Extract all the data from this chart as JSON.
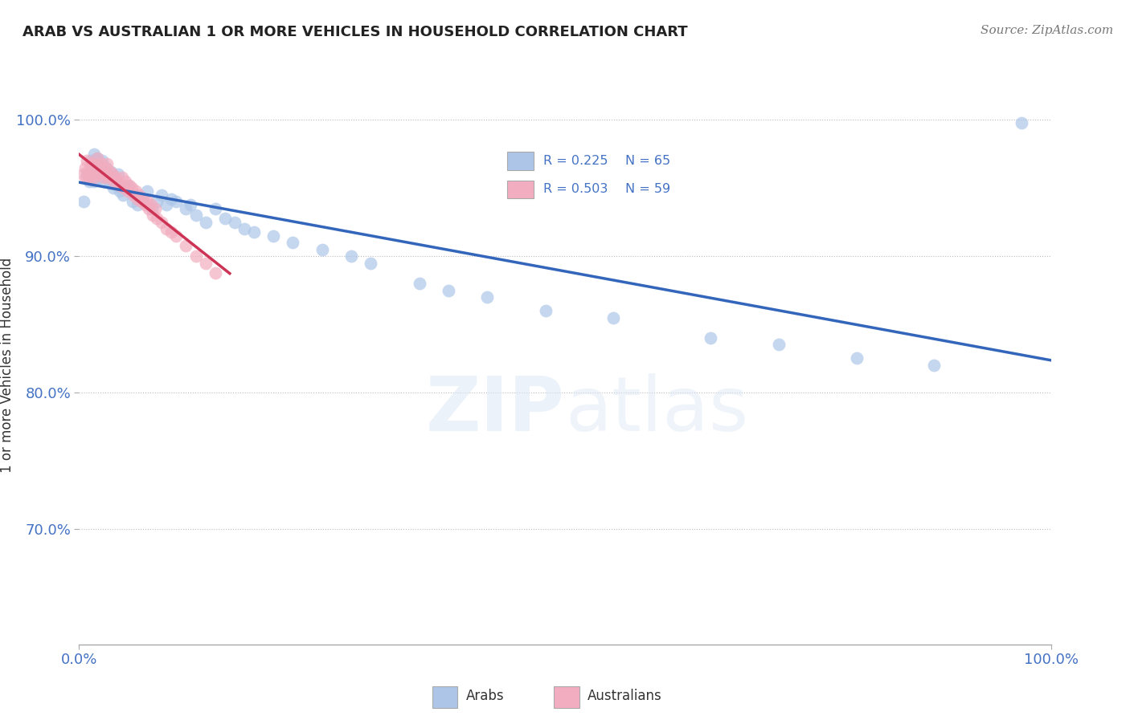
{
  "title": "ARAB VS AUSTRALIAN 1 OR MORE VEHICLES IN HOUSEHOLD CORRELATION CHART",
  "source": "Source: ZipAtlas.com",
  "ylabel": "1 or more Vehicles in Household",
  "xlabel": "",
  "xlim": [
    0.0,
    1.0
  ],
  "ylim": [
    0.615,
    1.025
  ],
  "yticks": [
    0.7,
    0.8,
    0.9,
    1.0
  ],
  "ytick_labels": [
    "70.0%",
    "80.0%",
    "90.0%",
    "100.0%"
  ],
  "xticks": [
    0.0,
    1.0
  ],
  "xtick_labels": [
    "0.0%",
    "100.0%"
  ],
  "r_arab": 0.225,
  "n_arab": 65,
  "r_australian": 0.503,
  "n_australian": 59,
  "legend_label_arab": "Arabs",
  "legend_label_australian": "Australians",
  "arab_color": "#adc6e8",
  "australian_color": "#f2adc0",
  "arab_line_color": "#3366bb",
  "australian_line_color": "#cc3355",
  "watermark_zip": "ZIP",
  "watermark_atlas": "atlas",
  "background_color": "#ffffff",
  "arab_x": [
    0.005,
    0.008,
    0.01,
    0.012,
    0.013,
    0.015,
    0.015,
    0.016,
    0.017,
    0.018,
    0.019,
    0.02,
    0.021,
    0.022,
    0.023,
    0.024,
    0.025,
    0.026,
    0.027,
    0.028,
    0.03,
    0.031,
    0.033,
    0.035,
    0.037,
    0.04,
    0.042,
    0.045,
    0.048,
    0.05,
    0.055,
    0.058,
    0.06,
    0.065,
    0.07,
    0.075,
    0.08,
    0.085,
    0.09,
    0.095,
    0.1,
    0.11,
    0.115,
    0.12,
    0.13,
    0.14,
    0.15,
    0.16,
    0.17,
    0.18,
    0.2,
    0.22,
    0.25,
    0.28,
    0.3,
    0.35,
    0.38,
    0.42,
    0.48,
    0.55,
    0.65,
    0.72,
    0.8,
    0.88,
    0.97
  ],
  "arab_y": [
    0.94,
    0.96,
    0.955,
    0.97,
    0.965,
    0.955,
    0.975,
    0.96,
    0.97,
    0.968,
    0.972,
    0.958,
    0.965,
    0.968,
    0.96,
    0.97,
    0.955,
    0.962,
    0.958,
    0.965,
    0.96,
    0.955,
    0.962,
    0.95,
    0.955,
    0.96,
    0.948,
    0.945,
    0.95,
    0.952,
    0.94,
    0.945,
    0.938,
    0.942,
    0.948,
    0.935,
    0.94,
    0.945,
    0.938,
    0.942,
    0.94,
    0.935,
    0.938,
    0.93,
    0.925,
    0.935,
    0.928,
    0.925,
    0.92,
    0.918,
    0.915,
    0.91,
    0.905,
    0.9,
    0.895,
    0.88,
    0.875,
    0.87,
    0.86,
    0.855,
    0.84,
    0.835,
    0.825,
    0.82,
    0.998
  ],
  "australian_x": [
    0.004,
    0.006,
    0.007,
    0.008,
    0.009,
    0.01,
    0.011,
    0.012,
    0.013,
    0.014,
    0.015,
    0.016,
    0.017,
    0.018,
    0.019,
    0.02,
    0.021,
    0.022,
    0.023,
    0.024,
    0.025,
    0.026,
    0.027,
    0.028,
    0.029,
    0.03,
    0.032,
    0.034,
    0.036,
    0.038,
    0.04,
    0.042,
    0.044,
    0.046,
    0.048,
    0.05,
    0.052,
    0.054,
    0.056,
    0.058,
    0.06,
    0.062,
    0.064,
    0.066,
    0.068,
    0.07,
    0.072,
    0.074,
    0.076,
    0.078,
    0.08,
    0.085,
    0.09,
    0.095,
    0.1,
    0.11,
    0.12,
    0.13,
    0.14
  ],
  "australian_y": [
    0.96,
    0.965,
    0.958,
    0.97,
    0.962,
    0.958,
    0.965,
    0.96,
    0.968,
    0.962,
    0.958,
    0.965,
    0.96,
    0.968,
    0.972,
    0.965,
    0.96,
    0.962,
    0.968,
    0.965,
    0.958,
    0.962,
    0.965,
    0.96,
    0.968,
    0.958,
    0.962,
    0.96,
    0.955,
    0.958,
    0.955,
    0.952,
    0.958,
    0.95,
    0.955,
    0.948,
    0.952,
    0.95,
    0.945,
    0.948,
    0.942,
    0.945,
    0.94,
    0.942,
    0.938,
    0.94,
    0.935,
    0.938,
    0.93,
    0.935,
    0.928,
    0.925,
    0.92,
    0.918,
    0.915,
    0.908,
    0.9,
    0.895,
    0.888
  ]
}
